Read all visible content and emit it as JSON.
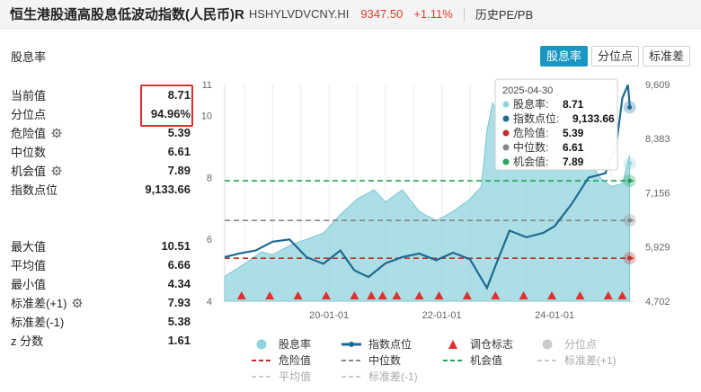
{
  "header": {
    "index_name": "恒生港股通高股息低波动指数(人民币)R",
    "code": "HSHYLVDVCNY.HI",
    "price": "9347.50",
    "change": "+1.11%",
    "history_link": "历史PE/PB"
  },
  "section_title": "股息率",
  "tabs": [
    {
      "label": "股息率",
      "active": true
    },
    {
      "label": "分位点",
      "active": false
    },
    {
      "label": "标准差",
      "active": false
    }
  ],
  "stats_top": [
    {
      "label": "当前值",
      "value": "8.71",
      "gear": false
    },
    {
      "label": "分位点",
      "value": "94.96%",
      "gear": false
    },
    {
      "label": "危险值",
      "value": "5.39",
      "gear": true
    },
    {
      "label": "中位数",
      "value": "6.61",
      "gear": false
    },
    {
      "label": "机会值",
      "value": "7.89",
      "gear": true
    },
    {
      "label": "指数点位",
      "value": "9,133.66",
      "gear": false
    }
  ],
  "stats_bottom": [
    {
      "label": "最大值",
      "value": "10.51",
      "gear": false
    },
    {
      "label": "平均值",
      "value": "6.66",
      "gear": false
    },
    {
      "label": "最小值",
      "value": "4.34",
      "gear": false
    },
    {
      "label": "标准差(+1)",
      "value": "7.93",
      "gear": true
    },
    {
      "label": "标准差(-1)",
      "value": "5.38",
      "gear": false
    },
    {
      "label": "z 分数",
      "value": "1.61",
      "gear": false
    }
  ],
  "tooltip": {
    "date": "2025-04-30",
    "rows": [
      {
        "label": "股息率: ",
        "value": "8.71",
        "color": "#8fd3dc"
      },
      {
        "label": "指数点位: ",
        "value": "9,133.66",
        "color": "#1f6a94"
      },
      {
        "label": "危险值: ",
        "value": "5.39",
        "color": "#c0302a"
      },
      {
        "label": "中位数: ",
        "value": "6.61",
        "color": "#888888"
      },
      {
        "label": "机会值: ",
        "value": "7.89",
        "color": "#27a35a"
      }
    ]
  },
  "legend": [
    {
      "label": "股息率",
      "kind": "area-dot",
      "color": "#8fd3dc",
      "dim": false
    },
    {
      "label": "指数点位",
      "kind": "line",
      "color": "#1f6a94",
      "dim": false
    },
    {
      "label": "调仓标志",
      "kind": "triangle",
      "color": "#e52d2d",
      "dim": false
    },
    {
      "label": "分位点",
      "kind": "dot",
      "color": "#cccccc",
      "dim": true
    },
    {
      "label": "危险值",
      "kind": "dash",
      "color": "#c0302a",
      "dim": false
    },
    {
      "label": "中位数",
      "kind": "dash",
      "color": "#888888",
      "dim": false
    },
    {
      "label": "机会值",
      "kind": "dash",
      "color": "#27a35a",
      "dim": false
    },
    {
      "label": "标准差(+1)",
      "kind": "dash",
      "color": "#cccccc",
      "dim": true
    },
    {
      "label": "平均值",
      "kind": "dash",
      "color": "#cccccc",
      "dim": true
    },
    {
      "label": "标准差(-1)",
      "kind": "dash",
      "color": "#cccccc",
      "dim": true
    }
  ],
  "chart_data": {
    "type": "line",
    "x_tick_labels": [
      "20-01-01",
      "22-01-01",
      "24-01-01"
    ],
    "x_ticks": [
      2020.0,
      2022.0,
      2024.0
    ],
    "x_range": [
      2018.15,
      2025.4
    ],
    "y_left": {
      "ticks": [
        4,
        6,
        8,
        10,
        11
      ],
      "range": [
        4,
        11
      ]
    },
    "y_right": {
      "ticks": [
        "4,702",
        "5,929",
        "7,156",
        "8,383",
        "9,609"
      ],
      "values": [
        4702,
        5929,
        7156,
        8383,
        9609
      ],
      "range": [
        4702,
        9609
      ]
    },
    "grid": "vertical",
    "legend_position": "bottom",
    "reference_lines": [
      {
        "name": "危险值",
        "value": 5.39,
        "color": "#c0302a"
      },
      {
        "name": "中位数",
        "value": 6.61,
        "color": "#888888"
      },
      {
        "name": "机会值",
        "value": 7.89,
        "color": "#27a35a"
      }
    ],
    "series": [
      {
        "name": "股息率",
        "axis": "left",
        "x": [
          2018.15,
          2018.5,
          2018.8,
          2019.0,
          2019.3,
          2019.6,
          2019.9,
          2020.2,
          2020.5,
          2020.8,
          2021.0,
          2021.3,
          2021.6,
          2021.9,
          2022.2,
          2022.5,
          2022.7,
          2022.8,
          2022.9,
          2023.1,
          2023.3,
          2023.6,
          2023.9,
          2024.2,
          2024.5,
          2024.8,
          2025.0,
          2025.2,
          2025.33
        ],
        "y": [
          4.8,
          5.2,
          5.6,
          5.5,
          5.8,
          6.0,
          6.2,
          6.8,
          7.3,
          7.6,
          7.2,
          7.6,
          6.9,
          6.6,
          6.9,
          7.3,
          7.7,
          9.5,
          10.4,
          9.7,
          9.2,
          9.6,
          8.9,
          9.9,
          8.9,
          8.0,
          7.7,
          7.8,
          8.71
        ]
      },
      {
        "name": "指数点位",
        "axis": "right",
        "x": [
          2018.15,
          2018.4,
          2018.7,
          2019.0,
          2019.3,
          2019.6,
          2019.9,
          2020.2,
          2020.45,
          2020.7,
          2021.0,
          2021.3,
          2021.6,
          2021.9,
          2022.2,
          2022.5,
          2022.8,
          2022.95,
          2023.2,
          2023.5,
          2023.8,
          2024.0,
          2024.3,
          2024.6,
          2024.9,
          2025.1,
          2025.2,
          2025.3,
          2025.33
        ],
        "y": [
          5700,
          5780,
          5850,
          6050,
          6100,
          5700,
          5550,
          5850,
          5400,
          5250,
          5560,
          5700,
          5780,
          5630,
          5800,
          5650,
          5000,
          5500,
          6300,
          6150,
          6250,
          6400,
          6900,
          7500,
          7600,
          8300,
          9300,
          9600,
          9133.66
        ]
      }
    ],
    "rebalance_markers_x": [
      2018.45,
      2018.95,
      2019.45,
      2019.95,
      2020.45,
      2020.75,
      2020.95,
      2021.2,
      2021.6,
      2021.95,
      2022.45,
      2022.95,
      2023.45,
      2023.95,
      2024.45,
      2024.95,
      2025.2
    ]
  }
}
